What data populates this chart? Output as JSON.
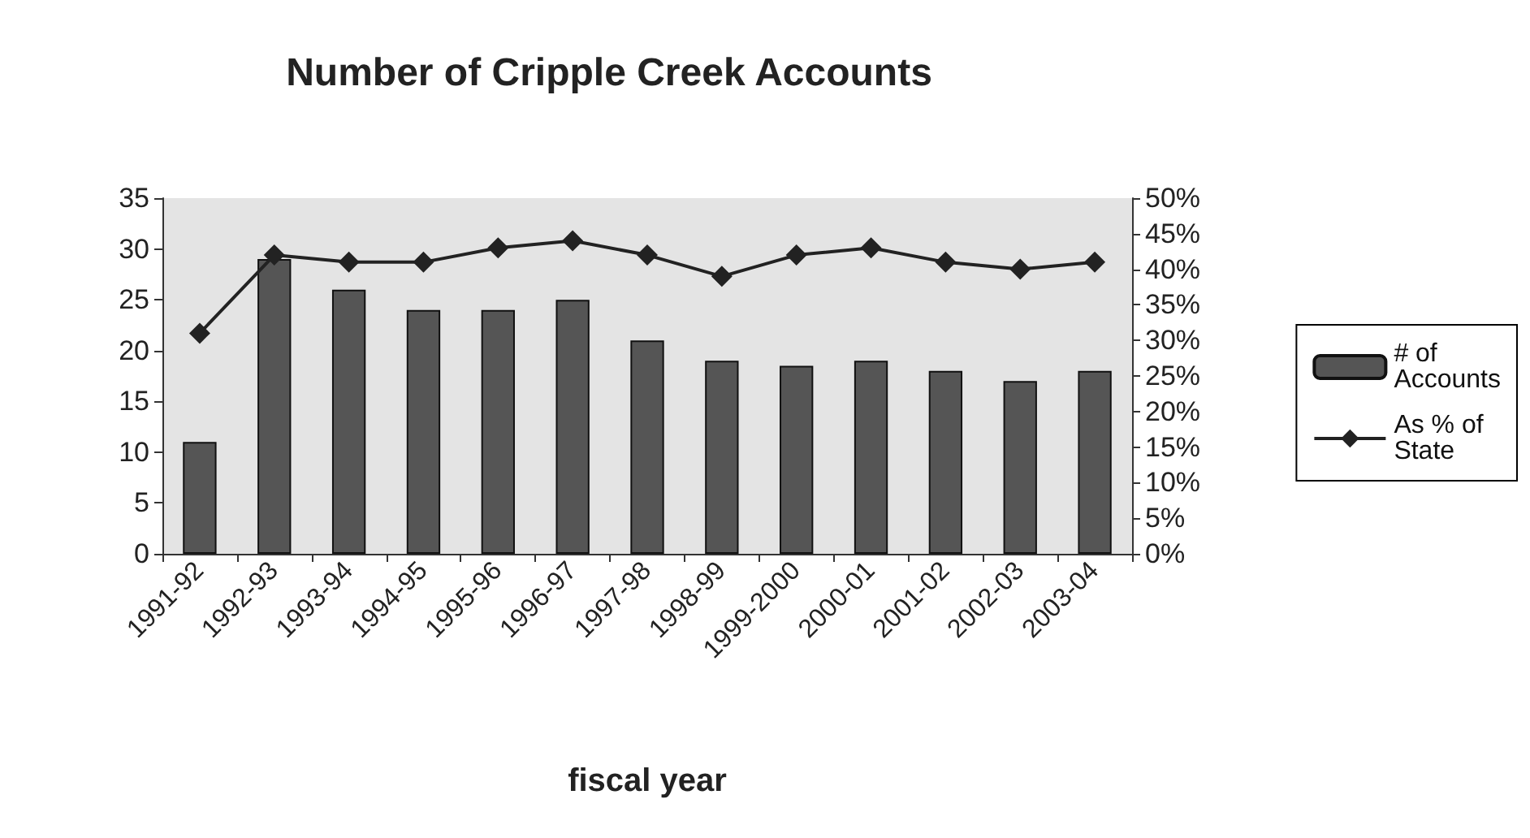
{
  "chart_data": {
    "type": "bar",
    "title": "Number of Cripple Creek Accounts",
    "xlabel": "fiscal year",
    "categories": [
      "1991-92",
      "1992-93",
      "1993-94",
      "1994-95",
      "1995-96",
      "1996-97",
      "1997-98",
      "1998-99",
      "1999-2000",
      "2000-01",
      "2001-02",
      "2002-03",
      "2003-04"
    ],
    "series": [
      {
        "name": "# of Accounts",
        "color": "#555555",
        "values": [
          11,
          29,
          26,
          24,
          24,
          25,
          21,
          19,
          18.5,
          19,
          18,
          17,
          18
        ]
      },
      {
        "name": "As % of State",
        "type": "line",
        "axis": "y2",
        "color": "#222222",
        "marker": "diamond",
        "values": [
          31,
          42,
          41,
          41,
          43,
          44,
          42,
          39,
          42,
          43,
          41,
          40,
          41
        ]
      }
    ],
    "ylim": [
      0,
      35
    ],
    "yticks": [
      0,
      5,
      10,
      15,
      20,
      25,
      30,
      35
    ],
    "y2lim": [
      0,
      50
    ],
    "y2ticks": [
      {
        "value": 0,
        "label": "0%"
      },
      {
        "value": 5,
        "label": "5%"
      },
      {
        "value": 10,
        "label": "10%"
      },
      {
        "value": 15,
        "label": "15%"
      },
      {
        "value": 20,
        "label": "20%"
      },
      {
        "value": 25,
        "label": "25%"
      },
      {
        "value": 30,
        "label": "30%"
      },
      {
        "value": 35,
        "label": "35%"
      },
      {
        "value": 40,
        "label": "40%"
      },
      {
        "value": 45,
        "label": "45%"
      },
      {
        "value": 50,
        "label": "50%"
      }
    ],
    "grid": false,
    "legend": "right"
  }
}
